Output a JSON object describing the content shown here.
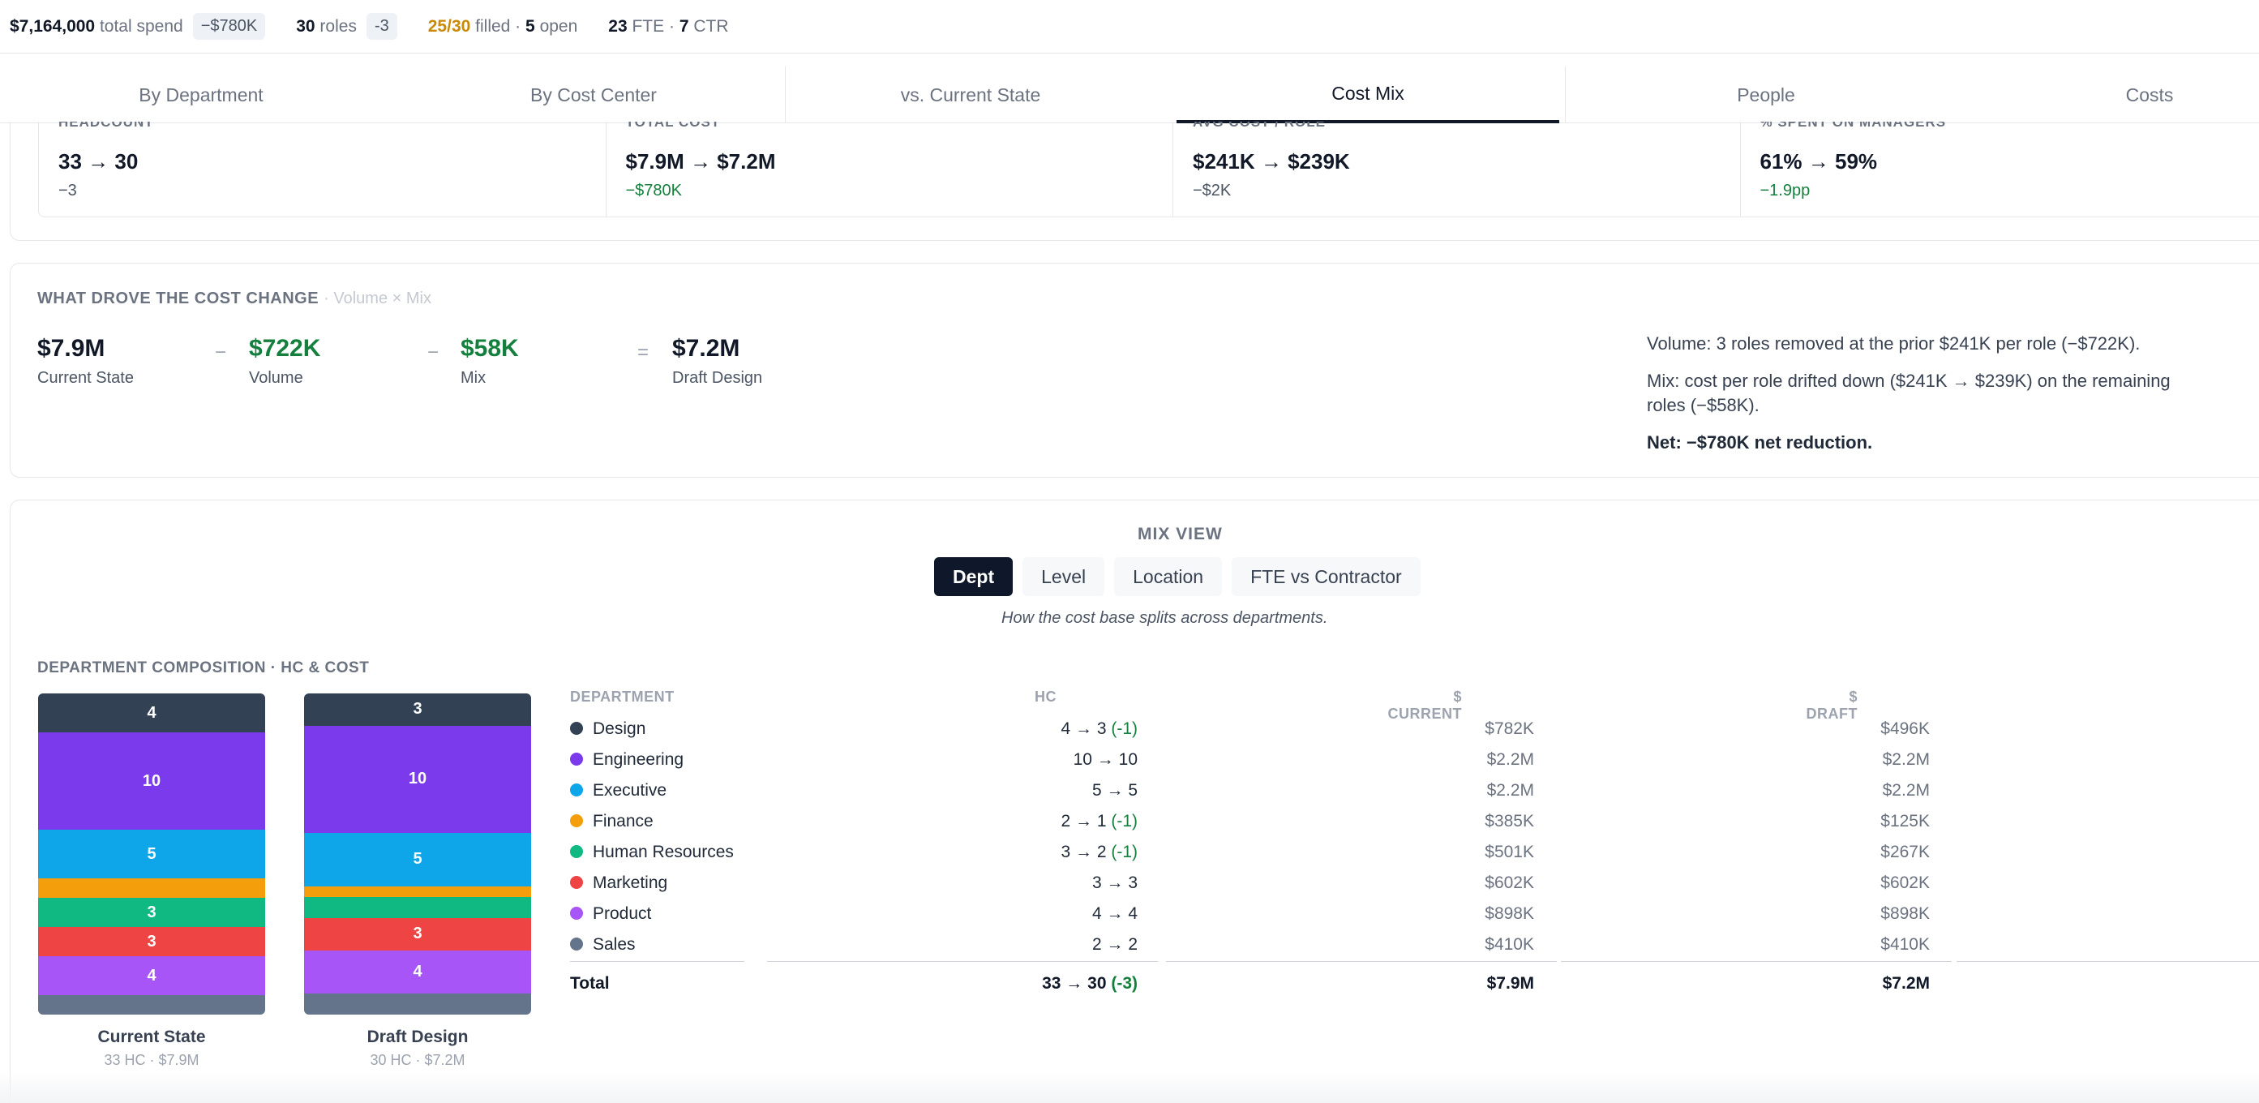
{
  "summary": {
    "spend_value": "$7,164,000",
    "spend_label": "total spend",
    "spend_chip": "−$780K",
    "roles_value": "30",
    "roles_label": "roles",
    "roles_chip": "-3",
    "filled_value": "25/30",
    "filled_label": "filled ·",
    "open_value": "5",
    "open_label": "open",
    "fte_value": "23",
    "fte_label": "FTE ·",
    "ctr_value": "7",
    "ctr_label": "CTR"
  },
  "tabs": [
    {
      "label": "By Department"
    },
    {
      "label": "By Cost Center"
    },
    {
      "label": "vs. Current State"
    },
    {
      "label": "Cost Mix",
      "active": true
    },
    {
      "label": "People"
    },
    {
      "label": "Costs"
    }
  ],
  "kpis": [
    {
      "label": "HEADCOUNT",
      "value": "33 → 30",
      "delta": "−3"
    },
    {
      "label": "TOTAL COST",
      "value": "$7.9M → $7.2M",
      "delta": "−$780K"
    },
    {
      "label": "AVG COST / ROLE",
      "value": "$241K → $239K",
      "delta": "−$2K"
    },
    {
      "label": "% SPENT ON MANAGERS",
      "value": "61% → 59%",
      "delta": "−1.9pp"
    }
  ],
  "drivers": {
    "title": "WHAT DROVE THE COST CHANGE",
    "subtitle": "· Volume × Mix",
    "items": [
      {
        "value": "$7.9M",
        "label": "Current State"
      },
      {
        "value": "$722K",
        "label": "Volume"
      },
      {
        "value": "$58K",
        "label": "Mix"
      },
      {
        "value": "$7.2M",
        "label": "Draft Design"
      }
    ],
    "ops": [
      "−",
      "−",
      "="
    ],
    "note_volume": "Volume: 3 roles removed at the prior $241K per role (−$722K).",
    "note_mix": "Mix: cost per role drifted down ($241K → $239K) on the remaining roles (−$58K).",
    "note_net": "Net: −$780K net reduction."
  },
  "mix": {
    "title": "MIX VIEW",
    "buttons": [
      "Dept",
      "Level",
      "Location",
      "FTE vs Contractor"
    ],
    "caption": "How the cost base splits across departments.",
    "composition_title": "DEPARTMENT COMPOSITION · HC & COST",
    "current_name": "Current State",
    "current_sub": "33 HC · $7.9M",
    "draft_name": "Draft Design",
    "draft_sub": "30 HC · $7.2M"
  },
  "chart_data": {
    "type": "bar",
    "stacked": true,
    "categories": [
      "Current State",
      "Draft Design"
    ],
    "series": [
      {
        "name": "Design",
        "values": [
          4,
          3
        ],
        "color": "#334155"
      },
      {
        "name": "Engineering",
        "values": [
          10,
          10
        ],
        "color": "#7c3aed"
      },
      {
        "name": "Executive",
        "values": [
          5,
          5
        ],
        "color": "#0ea5e9"
      },
      {
        "name": "Finance",
        "values": [
          2,
          1
        ],
        "color": "#f59e0b"
      },
      {
        "name": "Human Resources",
        "values": [
          3,
          2
        ],
        "color": "#10b981"
      },
      {
        "name": "Marketing",
        "values": [
          3,
          3
        ],
        "color": "#ef4444"
      },
      {
        "name": "Product",
        "values": [
          4,
          4
        ],
        "color": "#a855f7"
      },
      {
        "name": "Sales",
        "values": [
          2,
          2
        ],
        "color": "#64748b"
      }
    ]
  },
  "table": {
    "headers": {
      "dept": "DEPARTMENT",
      "hc": "HC",
      "current": "$ CURRENT",
      "draft": "$ DRAFT"
    },
    "rows": [
      {
        "dept": "Design",
        "hc": "4 → 3",
        "hc_delta": "(-1)",
        "current": "$782K",
        "draft": "$496K"
      },
      {
        "dept": "Engineering",
        "hc": "10 → 10",
        "hc_delta": "",
        "current": "$2.2M",
        "draft": "$2.2M"
      },
      {
        "dept": "Executive",
        "hc": "5 → 5",
        "hc_delta": "",
        "current": "$2.2M",
        "draft": "$2.2M"
      },
      {
        "dept": "Finance",
        "hc": "2 → 1",
        "hc_delta": "(-1)",
        "current": "$385K",
        "draft": "$125K"
      },
      {
        "dept": "Human Resources",
        "hc": "3 → 2",
        "hc_delta": "(-1)",
        "current": "$501K",
        "draft": "$267K"
      },
      {
        "dept": "Marketing",
        "hc": "3 → 3",
        "hc_delta": "",
        "current": "$602K",
        "draft": "$602K"
      },
      {
        "dept": "Product",
        "hc": "4 → 4",
        "hc_delta": "",
        "current": "$898K",
        "draft": "$898K"
      },
      {
        "dept": "Sales",
        "hc": "2 → 2",
        "hc_delta": "",
        "current": "$410K",
        "draft": "$410K"
      }
    ],
    "total": {
      "label": "Total",
      "hc": "33 → 30",
      "hc_delta": "(-3)",
      "current": "$7.9M",
      "draft": "$7.2M"
    }
  }
}
